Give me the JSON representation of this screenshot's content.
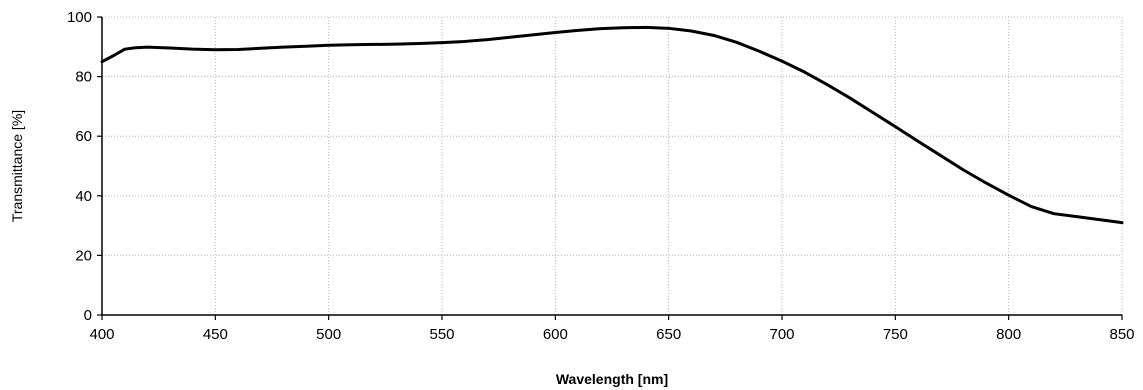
{
  "chart_data": {
    "type": "line",
    "title": "",
    "xlabel": "Wavelength [nm]",
    "ylabel": "Transmittance [%]",
    "xlim": [
      400,
      850
    ],
    "ylim": [
      0,
      100
    ],
    "x_ticks": [
      400,
      450,
      500,
      550,
      600,
      650,
      700,
      750,
      800,
      850
    ],
    "y_ticks": [
      0,
      20,
      40,
      60,
      80,
      100
    ],
    "grid": true,
    "legend": "none",
    "series": [
      {
        "color": "#000000",
        "x": [
          400,
          405,
          410,
          415,
          420,
          430,
          440,
          450,
          460,
          470,
          480,
          490,
          500,
          510,
          520,
          530,
          540,
          550,
          560,
          570,
          580,
          590,
          600,
          610,
          620,
          630,
          640,
          650,
          660,
          670,
          680,
          690,
          700,
          710,
          720,
          730,
          740,
          750,
          760,
          770,
          780,
          790,
          800,
          810,
          820,
          830,
          840,
          850
        ],
        "y": [
          85,
          87,
          89.2,
          89.7,
          89.9,
          89.6,
          89.2,
          89.0,
          89.1,
          89.5,
          89.9,
          90.2,
          90.5,
          90.7,
          90.8,
          90.9,
          91.1,
          91.4,
          91.8,
          92.4,
          93.2,
          94.0,
          94.8,
          95.5,
          96.1,
          96.4,
          96.5,
          96.2,
          95.3,
          93.8,
          91.5,
          88.5,
          85.2,
          81.5,
          77.3,
          72.8,
          68.0,
          63.2,
          58.3,
          53.5,
          48.7,
          44.3,
          40.2,
          36.4,
          34.0,
          33.0,
          32.0,
          31.0
        ]
      }
    ]
  }
}
